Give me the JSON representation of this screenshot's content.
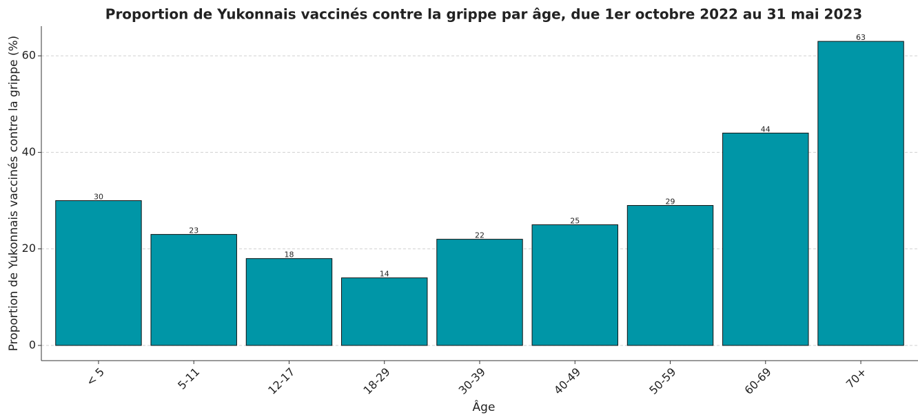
{
  "chart_data": {
    "type": "bar",
    "title": "Proportion de Yukonnais vaccinés contre la grippe par âge, due 1er octobre 2022 au 31 mai 2023",
    "x_label": "Âge",
    "y_label": "Proportion de Yukonnais vaccinés contre la grippe (%)",
    "categories": [
      "< 5",
      "5-11",
      "12-17",
      "18-29",
      "30-39",
      "40-49",
      "50-59",
      "60-69",
      "70+"
    ],
    "values": [
      30,
      23,
      18,
      14,
      22,
      25,
      29,
      44,
      63
    ],
    "color": "#0096a7",
    "ylim": [
      -3.15,
      66.15
    ],
    "yticks": [
      0,
      20,
      40,
      60
    ],
    "grid": true
  }
}
